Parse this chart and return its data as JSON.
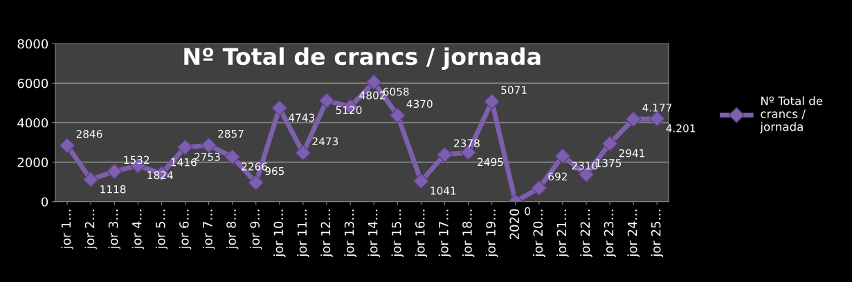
{
  "chart_data": {
    "type": "line",
    "title": "Nº Total de crancs / jornada",
    "categories": [
      "jor 1…",
      "jor 2…",
      "jor 3…",
      "jor 4…",
      "jor 5…",
      "jor 6…",
      "jor 7…",
      "jor 8…",
      "jor 9…",
      "jor 10…",
      "jor 11…",
      "jor 12…",
      "jor 13…",
      "jor 14…",
      "jor 15…",
      "jor 16…",
      "jor 17…",
      "jor 18…",
      "jor 19…",
      "2020",
      "jor 20…",
      "jor 21…",
      "jor 22…",
      "jor 23…",
      "jor 24…",
      "jor 25…"
    ],
    "series": [
      {
        "name": "Nº Total de crancs / jornada",
        "color": "#7e5fae",
        "values": [
          2846,
          1118,
          1532,
          1824,
          1416,
          2753,
          2857,
          2266,
          965,
          4743,
          2473,
          5120,
          4802,
          6058,
          4370,
          1041,
          2378,
          2495,
          5071,
          0,
          692,
          2310,
          1375,
          2941,
          4177,
          4201
        ],
        "value_labels": [
          "2846",
          "1118",
          "1532",
          "1824",
          "1416",
          "2753",
          "2857",
          "2266",
          "965",
          "4743",
          "2473",
          "5120",
          "4802",
          "6058",
          "4370",
          "1041",
          "2378",
          "2495",
          "5071",
          "0",
          "692",
          "2310",
          "1375",
          "2941",
          "4.177",
          "4.201"
        ]
      }
    ],
    "ylim": [
      0,
      8000
    ],
    "yticks": [
      0,
      2000,
      4000,
      6000,
      8000
    ],
    "grid": "y",
    "legend": "right",
    "marker": "diamond",
    "line_style": "solid"
  }
}
